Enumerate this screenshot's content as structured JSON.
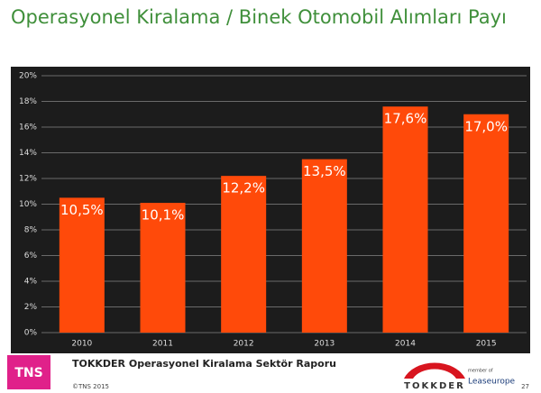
{
  "chart_data": {
    "type": "bar",
    "title": "Operasyonel Kiralama / Binek Otomobil Alımları Payı",
    "categories": [
      "2010",
      "2011",
      "2012",
      "2013",
      "2014",
      "2015"
    ],
    "values": [
      10.5,
      10.1,
      12.2,
      13.5,
      17.6,
      17.0
    ],
    "value_labels": [
      "10,5%",
      "10,1%",
      "12,2%",
      "13,5%",
      "17,6%",
      "17,0%"
    ],
    "color": "#ff4a0a",
    "ylim": [
      0,
      20
    ],
    "yticks": [
      {
        "value": 0,
        "label": "0%"
      },
      {
        "value": 2,
        "label": "2%"
      },
      {
        "value": 4,
        "label": "4%"
      },
      {
        "value": 6,
        "label": "6%"
      },
      {
        "value": 8,
        "label": "8%"
      },
      {
        "value": 10,
        "label": "10%"
      },
      {
        "value": 12,
        "label": "12%"
      },
      {
        "value": 14,
        "label": "14%"
      },
      {
        "value": 16,
        "label": "16%"
      },
      {
        "value": 18,
        "label": "18%"
      },
      {
        "value": 20,
        "label": "20%"
      }
    ],
    "grid": true
  },
  "footer": {
    "report": "TOKKDER Operasyonel Kiralama Sektör Raporu",
    "copyright": "©TNS 2015",
    "page": "27",
    "tns_logo": "TNS",
    "tokkder_logo": "TOKKDER",
    "member_of": "member of",
    "leaseurope": "Leaseurope"
  }
}
